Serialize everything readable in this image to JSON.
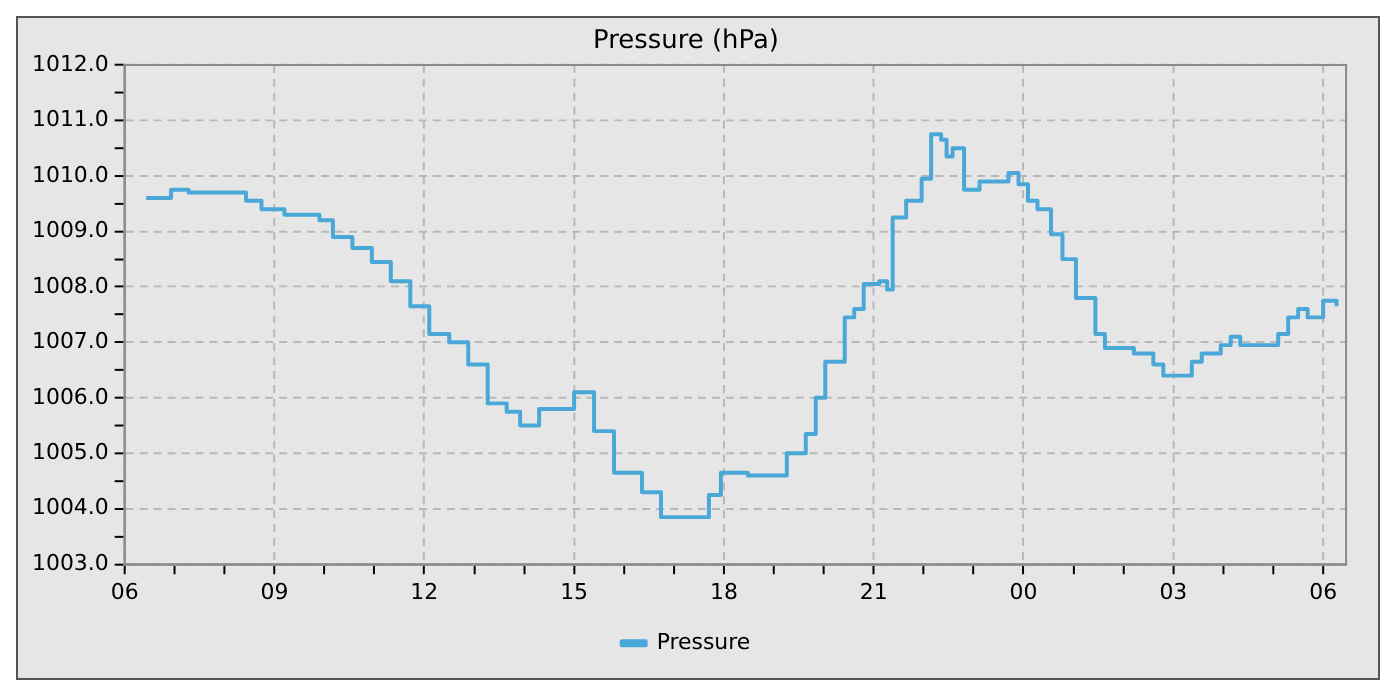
{
  "chart_data": {
    "type": "step",
    "title": "Pressure (hPa)",
    "xlim": [
      6,
      30.46
    ],
    "xticks": [
      {
        "value": 6,
        "label": "06"
      },
      {
        "value": 7,
        "label": null
      },
      {
        "value": 8,
        "label": null
      },
      {
        "value": 9,
        "label": "09"
      },
      {
        "value": 10,
        "label": null
      },
      {
        "value": 11,
        "label": null
      },
      {
        "value": 12,
        "label": "12"
      },
      {
        "value": 13,
        "label": null
      },
      {
        "value": 14,
        "label": null
      },
      {
        "value": 15,
        "label": "15"
      },
      {
        "value": 16,
        "label": null
      },
      {
        "value": 17,
        "label": null
      },
      {
        "value": 18,
        "label": "18"
      },
      {
        "value": 19,
        "label": null
      },
      {
        "value": 20,
        "label": null
      },
      {
        "value": 21,
        "label": "21"
      },
      {
        "value": 22,
        "label": null
      },
      {
        "value": 23,
        "label": null
      },
      {
        "value": 24,
        "label": "00"
      },
      {
        "value": 25,
        "label": null
      },
      {
        "value": 26,
        "label": null
      },
      {
        "value": 27,
        "label": "03"
      },
      {
        "value": 28,
        "label": null
      },
      {
        "value": 29,
        "label": null
      },
      {
        "value": 30,
        "label": "06"
      }
    ],
    "ylim": [
      1003,
      1012
    ],
    "yticks": [
      {
        "value": 1003,
        "label": "1003.0"
      },
      {
        "value": 1003.5,
        "label": null
      },
      {
        "value": 1004,
        "label": "1004.0"
      },
      {
        "value": 1004.5,
        "label": null
      },
      {
        "value": 1005,
        "label": "1005.0"
      },
      {
        "value": 1005.5,
        "label": null
      },
      {
        "value": 1006,
        "label": "1006.0"
      },
      {
        "value": 1006.5,
        "label": null
      },
      {
        "value": 1007,
        "label": "1007.0"
      },
      {
        "value": 1007.5,
        "label": null
      },
      {
        "value": 1008,
        "label": "1008.0"
      },
      {
        "value": 1008.5,
        "label": null
      },
      {
        "value": 1009,
        "label": "1009.0"
      },
      {
        "value": 1009.5,
        "label": null
      },
      {
        "value": 1010,
        "label": "1010.0"
      },
      {
        "value": 1010.5,
        "label": null
      },
      {
        "value": 1011,
        "label": "1011.0"
      },
      {
        "value": 1011.5,
        "label": null
      },
      {
        "value": 1012,
        "label": "1012.0"
      }
    ],
    "grid": true,
    "legend": "bottom",
    "line_style": "solid",
    "marker": "none",
    "series": [
      {
        "name": "Pressure",
        "color": "#4aa8d8",
        "x": [
          6.43,
          6.8,
          6.93,
          7.28,
          8.05,
          8.43,
          8.74,
          9.2,
          9.9,
          10.17,
          10.56,
          10.95,
          11.33,
          11.72,
          12.1,
          12.5,
          12.88,
          13.27,
          13.65,
          13.92,
          14.3,
          14.7,
          15.0,
          15.4,
          15.8,
          16.36,
          16.74,
          17.25,
          17.7,
          17.94,
          18.48,
          18.99,
          19.26,
          19.64,
          19.84,
          20.03,
          20.42,
          20.61,
          20.8,
          21.11,
          21.27,
          21.38,
          21.65,
          21.96,
          22.15,
          22.35,
          22.46,
          22.58,
          22.81,
          23.12,
          23.5,
          23.7,
          23.9,
          24.09,
          24.28,
          24.55,
          24.78,
          25.05,
          25.44,
          25.63,
          26.21,
          26.6,
          26.8,
          27.0,
          27.37,
          27.57,
          27.95,
          28.15,
          28.34,
          28.69,
          29.1,
          29.3,
          29.5,
          29.69,
          30.0,
          30.27
        ],
        "values": [
          1009.6,
          1009.6,
          1009.75,
          1009.7,
          1009.7,
          1009.55,
          1009.4,
          1009.3,
          1009.2,
          1008.9,
          1008.7,
          1008.45,
          1008.1,
          1007.65,
          1007.15,
          1007.0,
          1006.6,
          1005.9,
          1005.75,
          1005.5,
          1005.8,
          1005.8,
          1006.1,
          1005.4,
          1004.65,
          1004.3,
          1003.85,
          1003.85,
          1004.25,
          1004.65,
          1004.6,
          1004.6,
          1005.0,
          1005.35,
          1006.0,
          1006.65,
          1007.45,
          1007.6,
          1008.05,
          1008.1,
          1007.95,
          1009.25,
          1009.55,
          1009.95,
          1010.75,
          1010.65,
          1010.35,
          1010.5,
          1009.75,
          1009.9,
          1009.9,
          1010.05,
          1009.85,
          1009.55,
          1009.4,
          1008.95,
          1008.5,
          1007.8,
          1007.15,
          1006.9,
          1006.8,
          1006.6,
          1006.4,
          1006.4,
          1006.65,
          1006.8,
          1006.95,
          1007.1,
          1006.95,
          1006.95,
          1007.15,
          1007.45,
          1007.6,
          1007.45,
          1007.75,
          1007.65
        ]
      }
    ]
  }
}
